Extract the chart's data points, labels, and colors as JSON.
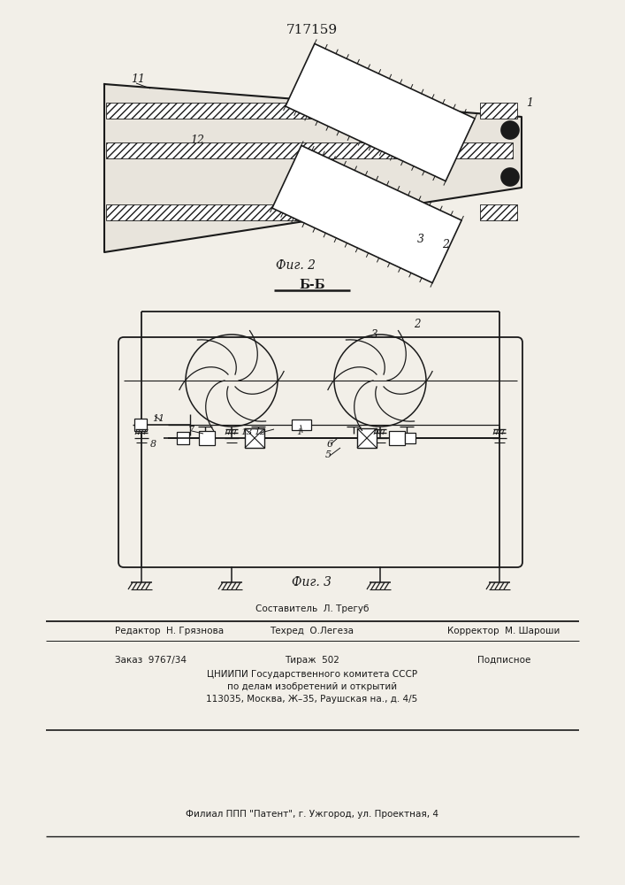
{
  "title": "717159",
  "fig2_caption": "Фиг. 2",
  "fig3_caption": "Фиг. 3",
  "bb_label": "Б-Б",
  "bg_color": "#f2efe8",
  "line_color": "#1a1a1a",
  "footer": {
    "line1_center": "Составитель  Л. Трегуб",
    "line2_left": "Редактор  Н. Грязнова",
    "line2_center": "Техред  О.Легеза",
    "line2_right": "Корректор  М. Шароши",
    "line3_left": "Заказ  9767/34",
    "line3_center": "Тираж  502",
    "line3_right": "Подписное",
    "line4": "ЦНИИПИ Государственного комитета СССР",
    "line5": "по делам изобретений и открытий",
    "line6": "113035, Москва, Ж–35, Раушская на., д. 4/5",
    "line7": "Филиал ППП \"Патент\", г. Ужгород, ул. Проектная, 4"
  }
}
